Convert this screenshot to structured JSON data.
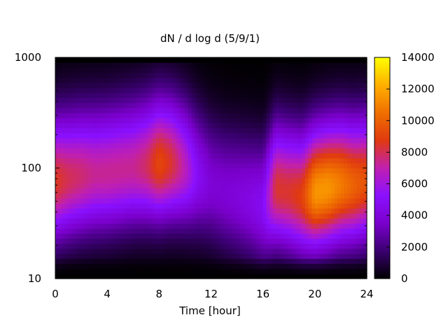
{
  "chart_data": {
    "type": "heatmap",
    "title": "dN / d log d (5/9/1)",
    "xlabel": "Time [hour]",
    "ylabel": "",
    "x_range": [
      0,
      24
    ],
    "x_ticks": [
      0,
      4,
      8,
      12,
      16,
      20,
      24
    ],
    "y_scale": "log",
    "y_range": [
      10,
      1000
    ],
    "y_ticks": [
      10,
      100,
      1000
    ],
    "colorbar": {
      "range": [
        0,
        14000
      ],
      "ticks": [
        0,
        2000,
        4000,
        6000,
        8000,
        10000,
        12000,
        14000
      ],
      "palette": [
        "#000000",
        "#3a0070",
        "#7a00cc",
        "#8a10ff",
        "#c020b0",
        "#e03a10",
        "#f07000",
        "#ffb000",
        "#ffff00"
      ]
    },
    "grid": false,
    "times": [
      0,
      1,
      2,
      3,
      4,
      5,
      6,
      7,
      8,
      9,
      10,
      11,
      12,
      13,
      14,
      15,
      16,
      17,
      18,
      19,
      20,
      21,
      22,
      23,
      24
    ],
    "peak_diameter": [
      75,
      80,
      85,
      88,
      90,
      95,
      100,
      105,
      110,
      110,
      100,
      85,
      70,
      60,
      55,
      50,
      45,
      65,
      60,
      55,
      60,
      65,
      70,
      70,
      75
    ],
    "peak_value": [
      8600,
      8000,
      7700,
      7300,
      7300,
      7300,
      7300,
      7800,
      9200,
      8300,
      6800,
      4800,
      3800,
      3800,
      4000,
      4300,
      4800,
      8400,
      8400,
      8900,
      11500,
      11500,
      10800,
      10000,
      9500
    ]
  }
}
